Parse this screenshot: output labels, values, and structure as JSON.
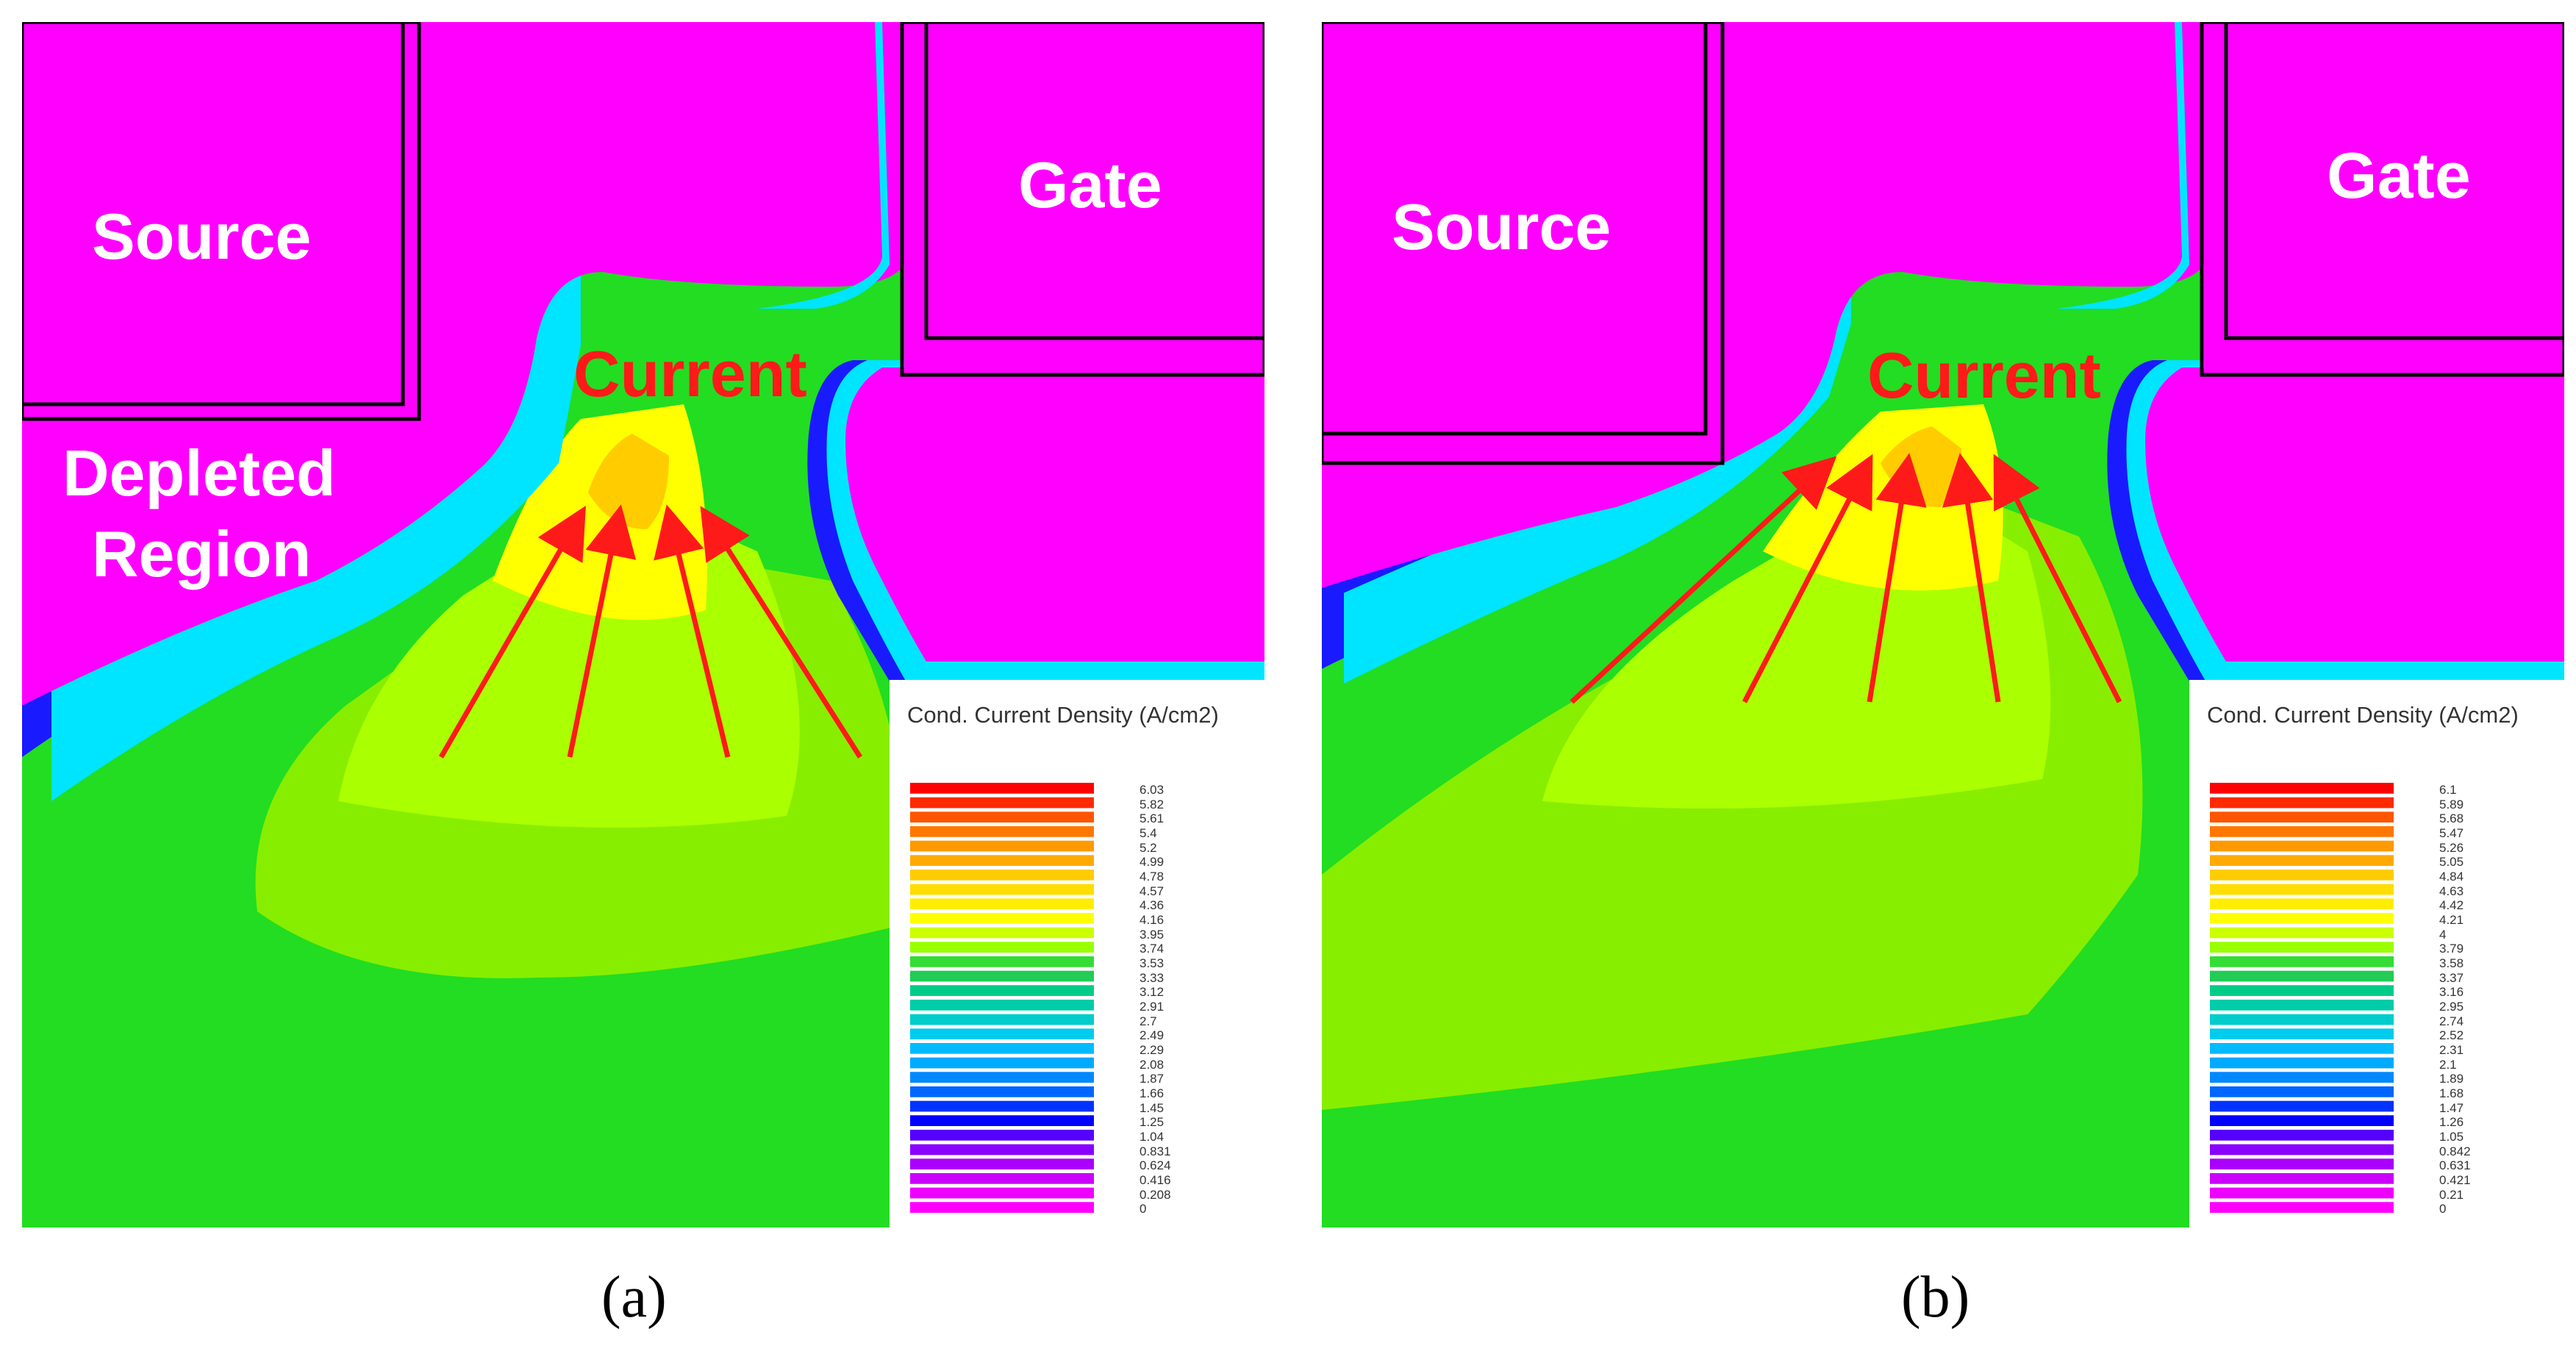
{
  "panels": [
    {
      "id": "a",
      "caption": "(a)",
      "labels": {
        "source": "Source",
        "gate": "Gate",
        "current": "Current",
        "depleted_line1": "Depleted",
        "depleted_line2": "Region"
      },
      "legend": {
        "title": "Cond. Current Density (A/cm2)",
        "ticks": [
          "6.03",
          "5.82",
          "5.61",
          "5.4",
          "5.2",
          "4.99",
          "4.78",
          "4.57",
          "4.36",
          "4.16",
          "3.95",
          "3.74",
          "3.53",
          "3.33",
          "3.12",
          "2.91",
          "2.7",
          "2.49",
          "2.29",
          "2.08",
          "1.87",
          "1.66",
          "1.45",
          "1.25",
          "1.04",
          "0.831",
          "0.624",
          "0.416",
          "0.208",
          "0"
        ]
      }
    },
    {
      "id": "b",
      "caption": "(b)",
      "labels": {
        "source": "Source",
        "gate": "Gate",
        "current": "Current"
      },
      "legend": {
        "title": "Cond. Current Density (A/cm2)",
        "ticks": [
          "6.1",
          "5.89",
          "5.68",
          "5.47",
          "5.26",
          "5.05",
          "4.84",
          "4.63",
          "4.42",
          "4.21",
          "4",
          "3.79",
          "3.58",
          "3.37",
          "3.16",
          "2.95",
          "2.74",
          "2.52",
          "2.31",
          "2.1",
          "1.89",
          "1.68",
          "1.47",
          "1.26",
          "1.05",
          "0.842",
          "0.631",
          "0.421",
          "0.21",
          "0"
        ]
      }
    }
  ],
  "colors": {
    "device_magenta": "#ff00ff",
    "field_green": "#22dd22",
    "field_lime": "#88ee00",
    "field_yellowgreen": "#aaff00",
    "field_yellow": "#ffff00",
    "field_orange": "#ffcc00",
    "edge_cyan": "#00e5ff",
    "edge_blue": "#1a1aff",
    "arrow_red": "#ff1a1a",
    "outline": "#000000"
  },
  "legend_palette": [
    "#ff0000",
    "#ff2a00",
    "#ff5500",
    "#ff7700",
    "#ff9900",
    "#ffaa00",
    "#ffcc00",
    "#ffdd00",
    "#ffee00",
    "#ffff00",
    "#ccff00",
    "#99ff00",
    "#33dd33",
    "#22cc55",
    "#00cc88",
    "#00ccaa",
    "#00cccc",
    "#00ccee",
    "#00bbff",
    "#00aaff",
    "#0088ff",
    "#0066ff",
    "#0033ff",
    "#0000ff",
    "#5500ff",
    "#8800ff",
    "#aa00ff",
    "#cc00ff",
    "#ee00ff",
    "#ff00ff"
  ]
}
